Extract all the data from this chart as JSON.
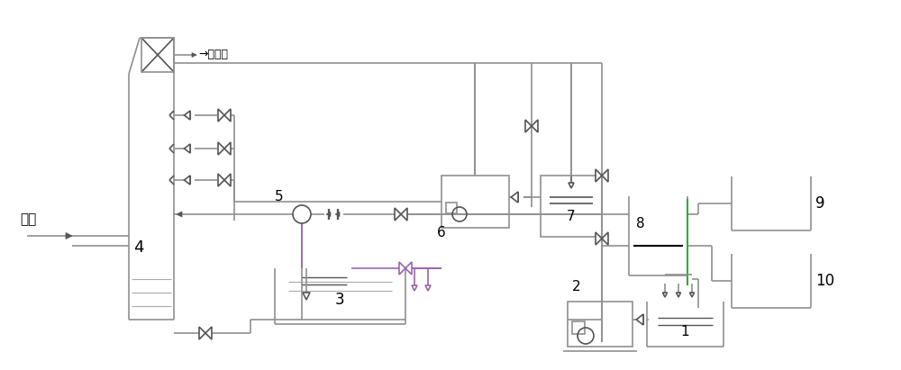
{
  "bg_color": "#ffffff",
  "lc": "#909090",
  "lw": 1.2,
  "tc": "#000000",
  "fig_w": 10.0,
  "fig_h": 4.11,
  "labels": {
    "yanqi": "烟气",
    "arrow_yanqi": "→",
    "4": "4",
    "3": "3",
    "5": "5",
    "6": "6",
    "7": "7",
    "8": "8",
    "9": "9",
    "10": "10",
    "2": "2",
    "1": "1",
    "quyandun": "→去烟囱"
  },
  "purple": "#9966AA",
  "green": "#33AA33",
  "dark": "#555555"
}
